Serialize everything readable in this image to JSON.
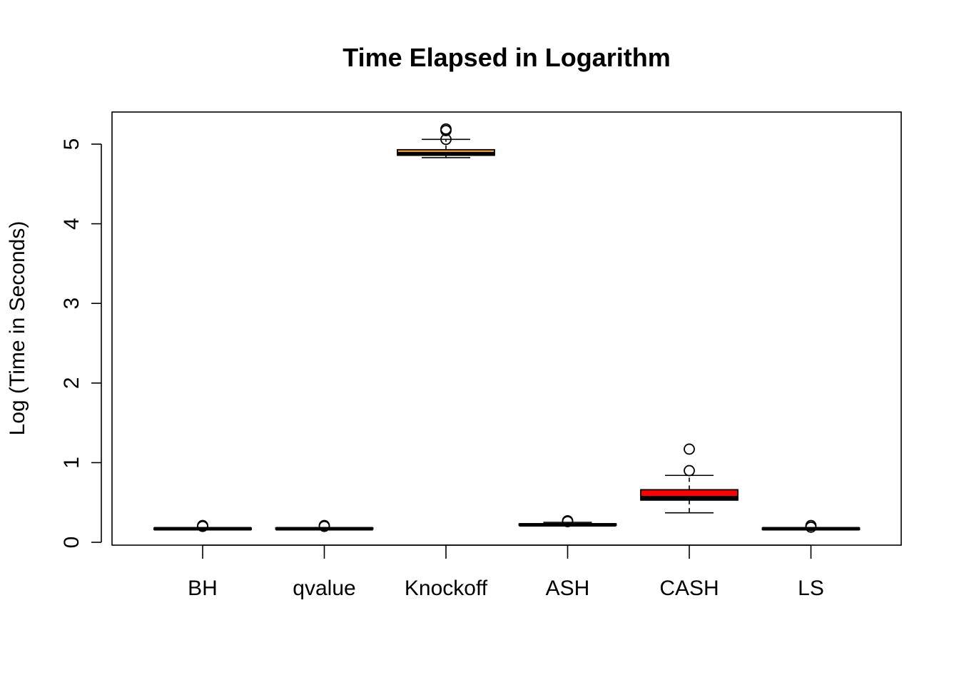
{
  "chart_data": {
    "type": "box",
    "title": "Time Elapsed in Logarithm",
    "xlabel": "",
    "ylabel": "Log (Time in Seconds)",
    "ylim": [
      0,
      5.4
    ],
    "y_ticks": [
      0,
      1,
      2,
      3,
      4,
      5
    ],
    "grid": false,
    "categories": [
      "BH",
      "qvalue",
      "Knockoff",
      "ASH",
      "CASH",
      "LS"
    ],
    "boxes": [
      {
        "category": "BH",
        "whisker_low": 0.16,
        "q1": 0.16,
        "median": 0.17,
        "q3": 0.18,
        "whisker_high": 0.18,
        "outliers": [
          0.2,
          0.21
        ],
        "fill": "#000000"
      },
      {
        "category": "qvalue",
        "whisker_low": 0.16,
        "q1": 0.165,
        "median": 0.17,
        "q3": 0.18,
        "whisker_high": 0.185,
        "outliers": [
          0.2,
          0.21
        ],
        "fill": "#000000"
      },
      {
        "category": "Knockoff",
        "whisker_low": 4.83,
        "q1": 4.86,
        "median": 4.88,
        "q3": 4.93,
        "whisker_high": 5.06,
        "outliers": [
          5.06,
          5.17,
          5.19
        ],
        "fill": "#FFA533"
      },
      {
        "category": "ASH",
        "whisker_low": 0.21,
        "q1": 0.215,
        "median": 0.22,
        "q3": 0.23,
        "whisker_high": 0.25,
        "outliers": [
          0.26,
          0.27
        ],
        "fill": "#000000"
      },
      {
        "category": "CASH",
        "whisker_low": 0.37,
        "q1": 0.53,
        "median": 0.56,
        "q3": 0.66,
        "whisker_high": 0.84,
        "outliers": [
          0.9,
          1.17
        ],
        "fill": "#FF0000"
      },
      {
        "category": "LS",
        "whisker_low": 0.16,
        "q1": 0.16,
        "median": 0.17,
        "q3": 0.18,
        "whisker_high": 0.18,
        "outliers": [
          0.19,
          0.21
        ],
        "fill": "#000000"
      }
    ]
  }
}
